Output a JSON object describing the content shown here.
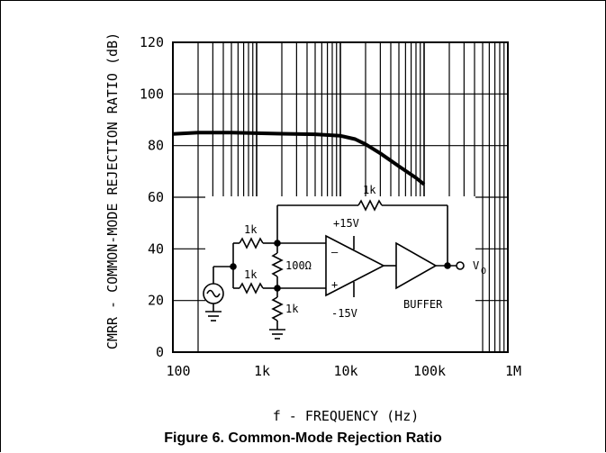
{
  "caption": "Figure 6. Common-Mode Rejection Ratio",
  "chart_data": {
    "type": "line",
    "title": "",
    "xlabel": "f - FREQUENCY (Hz)",
    "ylabel": "CMRR - COMMON-MODE REJECTION RATIO (dB)",
    "xscale": "log",
    "xlim": [
      100,
      1000000
    ],
    "ylim": [
      0,
      120
    ],
    "x_ticks": [
      100,
      1000,
      10000,
      100000,
      1000000
    ],
    "x_tick_labels": [
      "100",
      "1k",
      "10k",
      "100k",
      "1M"
    ],
    "y_ticks": [
      0,
      20,
      40,
      60,
      80,
      100,
      120
    ],
    "y_tick_labels": [
      "0",
      "20",
      "40",
      "60",
      "80",
      "100",
      "120"
    ],
    "grid": true,
    "legend": "none",
    "series": [
      {
        "x": [
          100,
          200,
          500,
          1000,
          2000,
          5000,
          10000,
          15000,
          20000,
          30000,
          50000,
          80000,
          100000
        ],
        "y": [
          84.5,
          85.0,
          85.0,
          84.8,
          84.6,
          84.4,
          83.8,
          82.5,
          80.5,
          77.0,
          72.0,
          67.5,
          65.0
        ]
      }
    ]
  },
  "schematic": {
    "r_top": "1k",
    "r_in_top": "1k",
    "r_in_bottom": "1k",
    "r_trim": "100Ω",
    "r_gnd": "1k",
    "supply_pos": "+15V",
    "supply_neg": "-15V",
    "op_minus": "–",
    "op_plus": "+",
    "buffer": "BUFFER",
    "out_v": "V",
    "out_sub": "O"
  }
}
